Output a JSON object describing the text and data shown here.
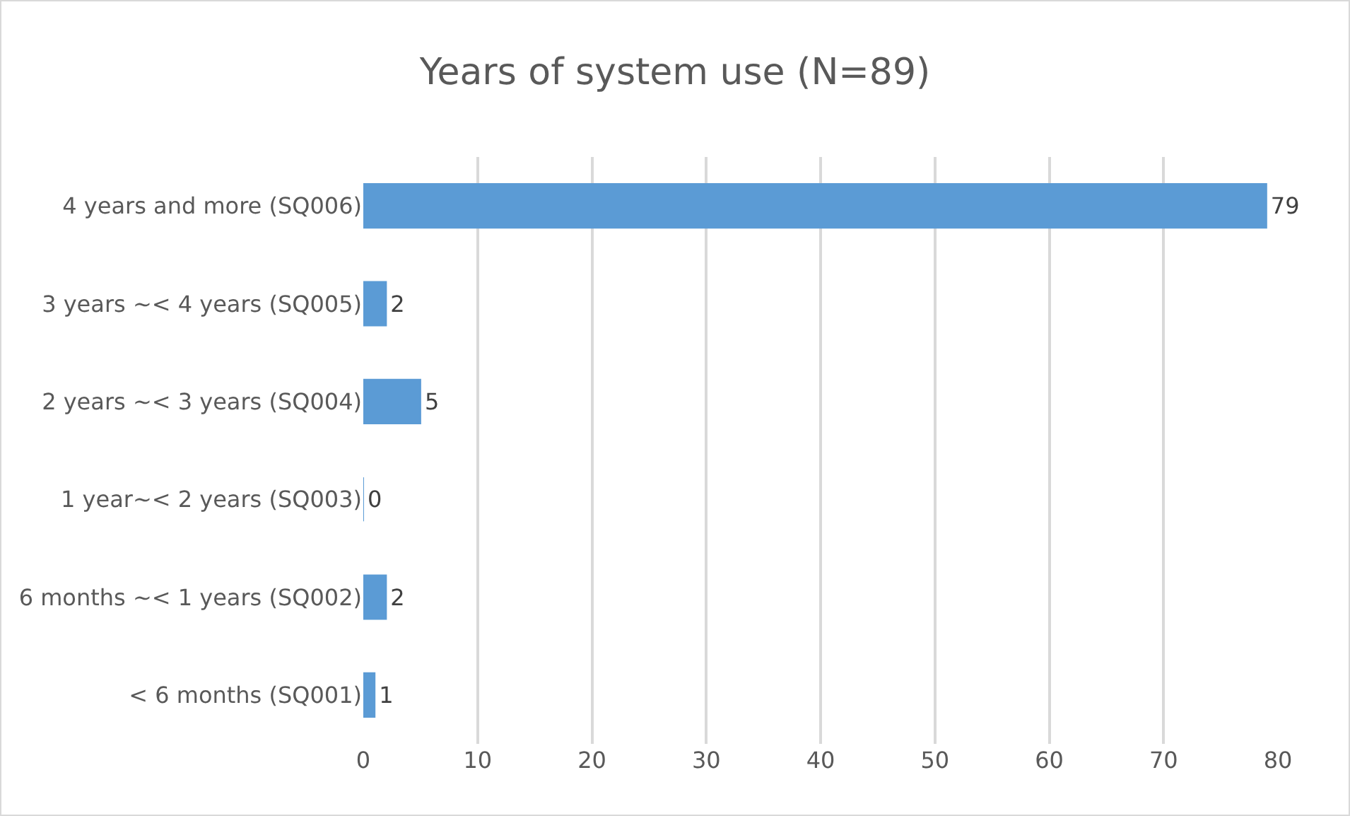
{
  "chart_data": {
    "type": "bar",
    "orientation": "horizontal",
    "title": "Years of system use (N=89)",
    "categories": [
      "4 years and more (SQ006)",
      "3 years ~< 4 years (SQ005)",
      "2 years ~< 3 years (SQ004)",
      "1 year~< 2 years (SQ003)",
      "6 months ~< 1 years (SQ002)",
      "< 6 months (SQ001)"
    ],
    "values": [
      79,
      2,
      5,
      0,
      2,
      1
    ],
    "color": "#5b9bd5",
    "xlim": [
      0,
      80
    ],
    "xticks": [
      0,
      10,
      20,
      30,
      40,
      50,
      60,
      70,
      80
    ],
    "grid": "x",
    "data_labels": true,
    "legend": false
  }
}
